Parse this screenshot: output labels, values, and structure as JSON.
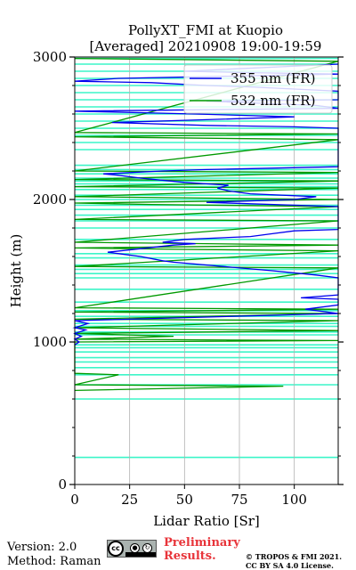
{
  "chart_data": {
    "type": "line",
    "title": "PollyXT_FMI at Kuopio",
    "subtitle": "[Averaged] 20210908 19:00-19:59",
    "xlabel": "Lidar Ratio [Sr]",
    "ylabel": "Height (m)",
    "xlim": [
      0,
      120
    ],
    "ylim": [
      0,
      3000
    ],
    "x_ticks": [
      0,
      25,
      50,
      75,
      100
    ],
    "x_tick_labels": [
      "0",
      "25",
      "50",
      "75",
      "100"
    ],
    "y_ticks": [
      0,
      1000,
      2000,
      3000
    ],
    "y_tick_labels": [
      "0",
      "1000",
      "2000",
      "3000"
    ],
    "y_minor_step": 200,
    "grid": "x",
    "legend_position": "top-right",
    "series": [
      {
        "name": "355 nm (FR)",
        "color": "#0000ee",
        "points": [
          [
            0,
            980
          ],
          [
            2,
            1000
          ],
          [
            0,
            1020
          ],
          [
            3,
            1040
          ],
          [
            0,
            1060
          ],
          [
            5,
            1085
          ],
          [
            0,
            1100
          ],
          [
            6,
            1130
          ],
          [
            0,
            1150
          ],
          [
            120,
            1200
          ],
          [
            105,
            1230
          ],
          [
            120,
            1260
          ],
          [
            120,
            1300
          ],
          [
            103,
            1310
          ],
          [
            120,
            1330
          ],
          [
            120,
            1450
          ],
          [
            110,
            1470
          ],
          [
            90,
            1500
          ],
          [
            45,
            1560
          ],
          [
            40,
            1570
          ],
          [
            30,
            1600
          ],
          [
            20,
            1620
          ],
          [
            15,
            1630
          ],
          [
            45,
            1680
          ],
          [
            55,
            1690
          ],
          [
            40,
            1700
          ],
          [
            50,
            1720
          ],
          [
            80,
            1740
          ],
          [
            90,
            1760
          ],
          [
            100,
            1780
          ],
          [
            120,
            1790
          ],
          [
            120,
            1950
          ],
          [
            100,
            1960
          ],
          [
            80,
            1970
          ],
          [
            60,
            1980
          ],
          [
            100,
            2000
          ],
          [
            110,
            2020
          ],
          [
            80,
            2040
          ],
          [
            70,
            2060
          ],
          [
            65,
            2080
          ],
          [
            70,
            2100
          ],
          [
            50,
            2120
          ],
          [
            30,
            2150
          ],
          [
            20,
            2170
          ],
          [
            13,
            2180
          ],
          [
            40,
            2200
          ],
          [
            60,
            2210
          ],
          [
            90,
            2220
          ],
          [
            120,
            2230
          ],
          [
            120,
            2500
          ],
          [
            100,
            2510
          ],
          [
            60,
            2520
          ],
          [
            17,
            2540
          ],
          [
            60,
            2560
          ],
          [
            100,
            2580
          ],
          [
            55,
            2600
          ],
          [
            0,
            2620
          ],
          [
            120,
            2640
          ],
          [
            110,
            2660
          ],
          [
            60,
            2690
          ],
          [
            120,
            2700
          ],
          [
            120,
            2760
          ],
          [
            80,
            2790
          ],
          [
            60,
            2800
          ],
          [
            35,
            2820
          ],
          [
            0,
            2830
          ],
          [
            20,
            2850
          ],
          [
            85,
            2870
          ],
          [
            120,
            2880
          ],
          [
            80,
            2890
          ],
          [
            50,
            2900
          ],
          [
            120,
            2950
          ]
        ]
      },
      {
        "name": "532 nm (FR)",
        "color": "#009900",
        "points": [
          [
            0,
            660
          ],
          [
            95,
            690
          ],
          [
            0,
            700
          ],
          [
            20,
            770
          ],
          [
            0,
            780
          ],
          [
            0,
            1000
          ],
          [
            120,
            1010
          ],
          [
            0,
            1020
          ],
          [
            45,
            1040
          ],
          [
            0,
            1060
          ],
          [
            120,
            1080
          ],
          [
            0,
            1100
          ],
          [
            120,
            1150
          ],
          [
            0,
            1160
          ],
          [
            120,
            1200
          ],
          [
            0,
            1210
          ],
          [
            120,
            1230
          ],
          [
            0,
            1240
          ],
          [
            120,
            1520
          ],
          [
            0,
            1530
          ],
          [
            120,
            1640
          ],
          [
            50,
            1650
          ],
          [
            0,
            1660
          ],
          [
            120,
            1680
          ],
          [
            0,
            1700
          ],
          [
            120,
            1850
          ],
          [
            0,
            1860
          ],
          [
            120,
            1950
          ],
          [
            35,
            1965
          ],
          [
            0,
            1975
          ],
          [
            120,
            2000
          ],
          [
            0,
            2020
          ],
          [
            120,
            2080
          ],
          [
            0,
            2090
          ],
          [
            120,
            2130
          ],
          [
            0,
            2140
          ],
          [
            120,
            2190
          ],
          [
            0,
            2200
          ],
          [
            120,
            2420
          ],
          [
            0,
            2440
          ],
          [
            120,
            2460
          ],
          [
            0,
            2470
          ],
          [
            120,
            2970
          ],
          [
            0,
            2990
          ]
        ]
      }
    ],
    "bands_color": "#3cf5c8",
    "bands": [
      190,
      600,
      700,
      770,
      820,
      860,
      890,
      930,
      960,
      980,
      1050,
      1070,
      1110,
      1130,
      1180,
      1220,
      1280,
      1370,
      1450,
      1480,
      1510,
      1540,
      1590,
      1620,
      1720,
      1800,
      1850,
      1890,
      1930,
      1960,
      2000,
      2030,
      2070,
      2090,
      2110,
      2130,
      2150,
      2180,
      2210,
      2240,
      2350,
      2400,
      2450,
      2500,
      2550,
      2600,
      2650,
      2700,
      2750,
      2800,
      2850,
      2900,
      2950,
      2990
    ]
  },
  "footer": {
    "version": "Version: 2.0",
    "method": "Method: Raman",
    "cc_text": "cc",
    "prelim_line1": "Preliminary",
    "prelim_line2": "Results.",
    "copyright_line1": "© TROPOS & FMI 2021.",
    "copyright_line2": "CC BY SA 4.0 License."
  }
}
